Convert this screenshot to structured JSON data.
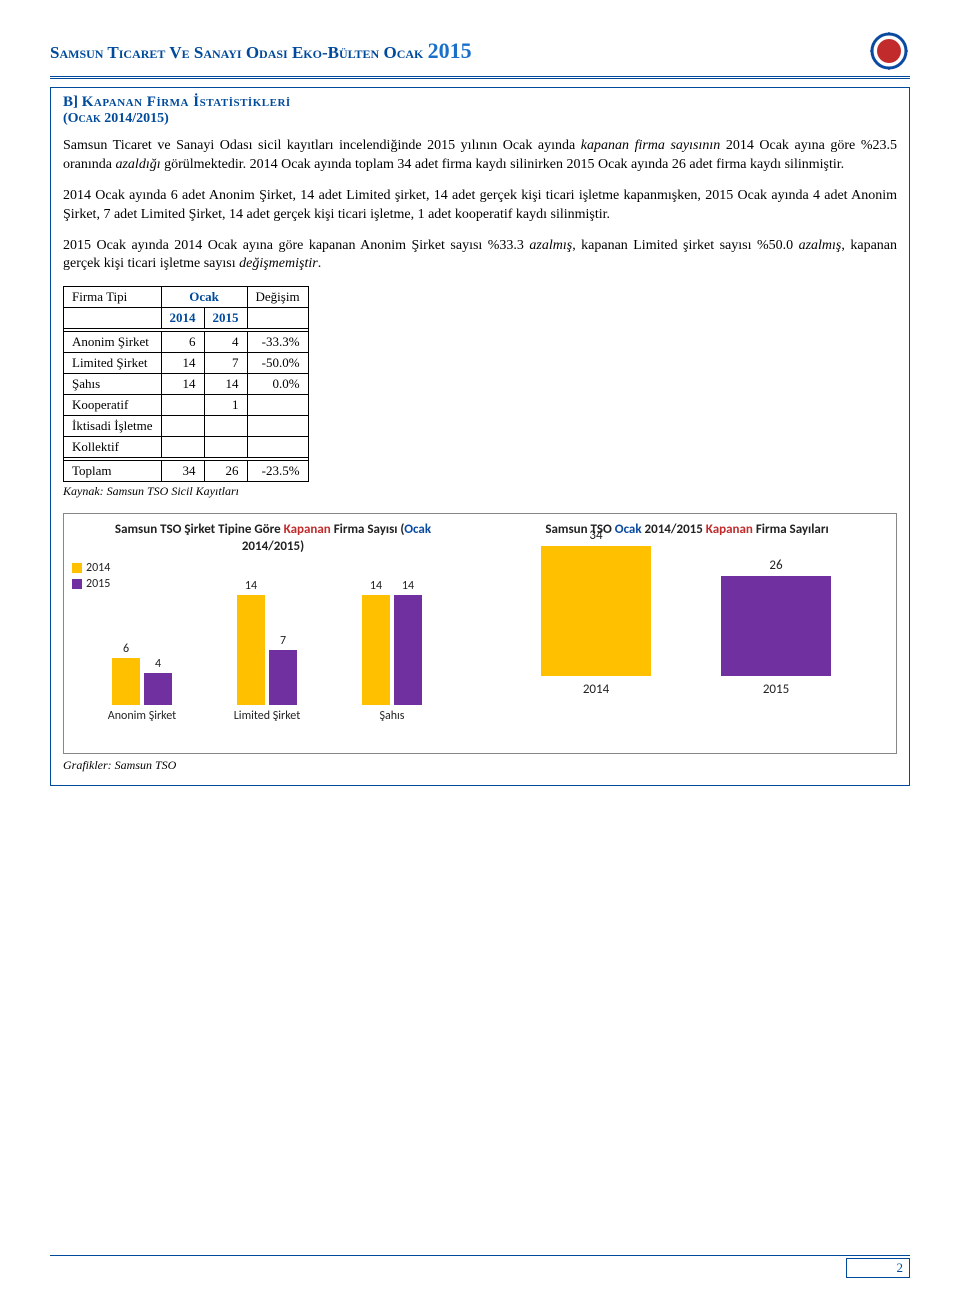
{
  "header": {
    "title_prefix": "Samsun Ticaret Ve Sanayi Odası Eko-Bülten Ocak",
    "year": "2015"
  },
  "section": {
    "prefix": "B] ",
    "title": "Kapanan Fi̇rma İstati̇sti̇kleri̇",
    "subtitle": "(Ocak 2014/2015)"
  },
  "para1_a": "Samsun Ticaret ve Sanayi Odası sicil kayıtları incelendiğinde 2015 yılının Ocak ayında ",
  "para1_b": "kapanan firma sayısının",
  "para1_c": " 2014 Ocak ayına göre %23.5 oranında ",
  "para1_d": "azaldığı",
  "para1_e": " görülmektedir. 2014 Ocak ayında toplam 34 adet firma kaydı silinirken 2015 Ocak ayında 26 adet firma kaydı silinmiştir.",
  "para2": "2014 Ocak ayında 6 adet Anonim Şirket, 14 adet Limited şirket, 14 adet gerçek kişi ticari işletme kapanmışken, 2015 Ocak ayında 4 adet Anonim Şirket, 7 adet Limited Şirket, 14 adet gerçek kişi ticari işletme, 1 adet kooperatif kaydı silinmiştir.",
  "para3_a": "2015 Ocak ayında 2014 Ocak ayına göre kapanan Anonim Şirket sayısı %33.3 ",
  "para3_b": "azalmış",
  "para3_c": ", kapanan Limited şirket sayısı %50.0 ",
  "para3_d": "azalmış",
  "para3_e": ", kapanan gerçek kişi ticari işletme sayısı ",
  "para3_f": "değişmemiştir",
  "para3_g": ".",
  "table": {
    "h_firma": "Firma Tipi",
    "h_ocak": "Ocak",
    "h_degisim": "Değişim",
    "h_2014": "2014",
    "h_2015": "2015",
    "rows": [
      {
        "name": "Anonim Şirket",
        "v2014": "6",
        "v2015": "4",
        "chg": "-33.3%"
      },
      {
        "name": "Limited Şirket",
        "v2014": "14",
        "v2015": "7",
        "chg": "-50.0%"
      },
      {
        "name": "Şahıs",
        "v2014": "14",
        "v2015": "14",
        "chg": "0.0%"
      },
      {
        "name": "Kooperatif",
        "v2014": "",
        "v2015": "1",
        "chg": ""
      },
      {
        "name": "İktisadi İşletme",
        "v2014": "",
        "v2015": "",
        "chg": ""
      },
      {
        "name": "Kollektif",
        "v2014": "",
        "v2015": "",
        "chg": ""
      }
    ],
    "total_label": "Toplam",
    "total_2014": "34",
    "total_2015": "26",
    "total_chg": "-23.5%",
    "source": "Kaynak: Samsun TSO Sicil Kayıtları"
  },
  "chart1": {
    "title_pre": "Samsun TSO Şirket Tipine Göre ",
    "title_red": "Kapanan",
    "title_post": " Firma Sayısı (",
    "title_blue": "Ocak",
    "title_end": " 2014/2015)",
    "legend_2014": "2014",
    "legend_2015": "2015",
    "color_2014": "#ffc000",
    "color_2015": "#7030a0",
    "ymax": 14,
    "groups": [
      {
        "cat": "Anonim Şirket",
        "v2014": 6,
        "v2015": 4
      },
      {
        "cat": "Limited Şirket",
        "v2014": 14,
        "v2015": 7
      },
      {
        "cat": "Şahıs",
        "v2014": 14,
        "v2015": 14
      }
    ]
  },
  "chart2": {
    "title_pre": "Samsun TSO ",
    "title_blue": "Ocak",
    "title_mid": " 2014/2015 ",
    "title_red": "Kapanan",
    "title_end": " Firma Sayıları",
    "color_2014": "#ffc000",
    "color_2015": "#7030a0",
    "ymax": 34,
    "bars": [
      {
        "cat": "2014",
        "val": 34,
        "color": "#ffc000"
      },
      {
        "cat": "2015",
        "val": 26,
        "color": "#7030a0"
      }
    ]
  },
  "charts_source": "Grafikler: Samsun TSO",
  "page_number": "2"
}
